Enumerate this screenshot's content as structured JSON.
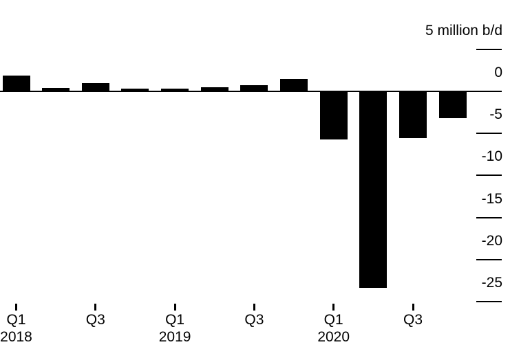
{
  "chart_data": {
    "type": "bar",
    "title": "",
    "unit": "million b/d",
    "categories": [
      "Q1 2018",
      "Q2 2018",
      "Q3 2018",
      "Q4 2018",
      "Q1 2019",
      "Q2 2019",
      "Q3 2019",
      "Q4 2019",
      "Q1 2020",
      "Q2 2020",
      "Q3 2020",
      "Q4 2020"
    ],
    "values": [
      1.9,
      0.4,
      1.0,
      0.3,
      0.3,
      0.5,
      0.7,
      1.5,
      -5.6,
      -23.3,
      -5.5,
      -3.1
    ],
    "ylim": [
      -27,
      6
    ],
    "grid": false,
    "legend": "none",
    "yaxis": {
      "side": "right",
      "ticks": [
        {
          "value": 5,
          "label": "5 million b/d"
        },
        {
          "value": 0,
          "label": "0"
        },
        {
          "value": -5,
          "label": "-5"
        },
        {
          "value": -10,
          "label": "-10"
        },
        {
          "value": -15,
          "label": "-15"
        },
        {
          "value": -20,
          "label": "-20"
        },
        {
          "value": -25,
          "label": "-25"
        }
      ]
    },
    "xaxis": {
      "ticks": [
        {
          "index": 0,
          "label": "Q1",
          "year": "2018"
        },
        {
          "index": 2,
          "label": "Q3",
          "year": ""
        },
        {
          "index": 4,
          "label": "Q1",
          "year": "2019"
        },
        {
          "index": 6,
          "label": "Q3",
          "year": ""
        },
        {
          "index": 8,
          "label": "Q1",
          "year": "2020"
        },
        {
          "index": 10,
          "label": "Q3",
          "year": ""
        }
      ]
    },
    "colors": {
      "bar": "#000000",
      "axis": "#000000",
      "text": "#000000",
      "background": "#ffffff"
    }
  }
}
